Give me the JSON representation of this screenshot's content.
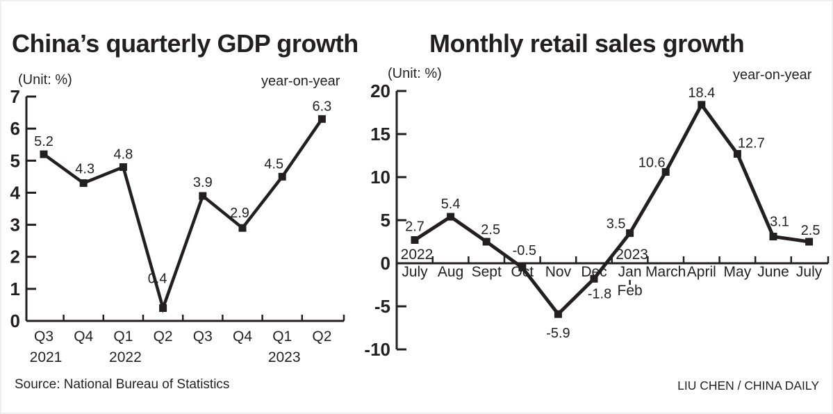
{
  "page": {
    "background": "#ffffff",
    "ink_color": "#231f20"
  },
  "chart_data": [
    {
      "type": "line",
      "title": "China’s quarterly GDP growth",
      "unit_label": "(Unit: %)",
      "legend_note": "year-on-year",
      "categories": [
        "Q3",
        "Q4",
        "Q1",
        "Q2",
        "Q3",
        "Q4",
        "Q1",
        "Q2"
      ],
      "values": [
        5.2,
        4.3,
        4.8,
        0.4,
        3.9,
        2.9,
        4.5,
        6.3
      ],
      "value_labels": [
        "5.2",
        "4.3",
        "4.8",
        "0.4",
        "3.9",
        "2.9",
        "4.5",
        "6.3"
      ],
      "y_ticks": [
        7,
        6,
        5,
        4,
        3,
        2,
        1,
        0
      ],
      "ylim": [
        0,
        7
      ],
      "x_year_markers": [
        {
          "label": "2021",
          "category_index": 0
        },
        {
          "label": "2022",
          "category_index": 2
        },
        {
          "label": "2023",
          "category_index": 6
        }
      ],
      "grid": "off",
      "line_color": "#231f20",
      "marker": "square"
    },
    {
      "type": "line",
      "title": "Monthly retail sales growth",
      "unit_label": "(Unit: %)",
      "legend_note": "year-on-year",
      "categories": [
        "July",
        "Aug",
        "Sept",
        "Oct",
        "Nov",
        "Dec",
        "Jan",
        "March",
        "April",
        "May",
        "June",
        "July"
      ],
      "second_row_category": {
        "category_index": 6,
        "label": "Feb"
      },
      "values": [
        2.7,
        5.4,
        2.5,
        -0.5,
        -5.9,
        -1.8,
        3.5,
        10.6,
        18.4,
        12.7,
        3.1,
        2.5
      ],
      "value_labels": [
        "2.7",
        "5.4",
        "2.5",
        "-0.5",
        "-5.9",
        "-1.8",
        "3.5",
        "10.6",
        "18.4",
        "12.7",
        "3.1",
        "2.5"
      ],
      "y_ticks": [
        20,
        15,
        10,
        5,
        0,
        -5,
        -10
      ],
      "ylim": [
        -10,
        20
      ],
      "x_year_markers": [
        {
          "label": "2022",
          "category_index": 0
        },
        {
          "label": "2023",
          "category_index": 6
        }
      ],
      "grid": "off",
      "line_color": "#231f20",
      "marker": "square"
    }
  ],
  "footer": {
    "source": "Source: National Bureau of Statistics",
    "credit": "LIU CHEN / CHINA DAILY"
  }
}
